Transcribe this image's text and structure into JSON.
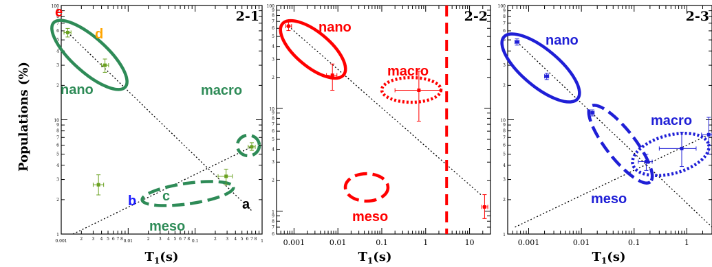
{
  "ylabel": "Populations (%)",
  "colors": {
    "green": "#2e8b57",
    "green_marker": "#6aa121",
    "red": "#ff0000",
    "blue": "#1f1fd6",
    "orange": "#ffa500",
    "dark": "#000000",
    "blue_letter": "#1a1aff"
  },
  "chart_data": [
    {
      "type": "scatter",
      "panel_label": "2-1",
      "xlabel": "T1(s)",
      "xscale": "log",
      "yscale": "log",
      "xlim": [
        0.001,
        1
      ],
      "ylim": [
        1,
        100
      ],
      "x_major_ticks": [
        "0.001",
        "0.01",
        "0.1",
        "1"
      ],
      "y_major_ticks": [
        "1",
        "10",
        "100"
      ],
      "color": "#2e8b57",
      "points": [
        {
          "x": 0.00125,
          "y": 58,
          "xerr": [
            0.0011,
            0.0014
          ],
          "yerr": [
            53,
            63
          ]
        },
        {
          "x": 0.0045,
          "y": 30,
          "xerr": [
            0.004,
            0.0051
          ],
          "yerr": [
            26,
            34
          ]
        },
        {
          "x": 0.0036,
          "y": 2.7,
          "xerr": [
            0.003,
            0.0043
          ],
          "yerr": [
            2.2,
            3.3
          ]
        },
        {
          "x": 0.29,
          "y": 3.2,
          "xerr": [
            0.22,
            0.36
          ],
          "yerr": [
            2.7,
            3.7
          ]
        },
        {
          "x": 0.7,
          "y": 5.8,
          "xerr": [
            0.62,
            0.79
          ],
          "yerr": [
            5.4,
            6.3
          ]
        }
      ],
      "dotted_lines": [
        {
          "x": [
            0.00125,
            0.7
          ],
          "y": [
            58,
            1.6
          ]
        },
        {
          "x": [
            0.0015,
            0.7
          ],
          "y": [
            1,
            5.8
          ]
        }
      ],
      "ellipses": [
        {
          "label": "nano",
          "cx": 0.003,
          "cy": 36,
          "style": "solid"
        },
        {
          "label": "meso",
          "cx": 0.012,
          "cy": 2.8,
          "style": "dashed"
        },
        {
          "label": "macro",
          "cx": 0.7,
          "cy": 5.8,
          "style": "dashed"
        }
      ],
      "annotations": [
        {
          "text": "e",
          "color": "#ff0000"
        },
        {
          "text": "d",
          "color": "#ffa500"
        },
        {
          "text": "nano",
          "color": "#2e8b57"
        },
        {
          "text": "macro",
          "color": "#2e8b57"
        },
        {
          "text": "c",
          "color": "#2e8b57"
        },
        {
          "text": "b",
          "color": "#1a1aff"
        },
        {
          "text": "a",
          "color": "#000000"
        },
        {
          "text": "meso",
          "color": "#2e8b57"
        }
      ]
    },
    {
      "type": "scatter",
      "panel_label": "2-2",
      "xlabel": "T1(s)",
      "xscale": "log",
      "yscale": "log",
      "xlim": [
        0.0004,
        30
      ],
      "ylim": [
        0.6,
        100
      ],
      "x_major_ticks": [
        "0.001",
        "0.01",
        "0.1",
        "1",
        "10"
      ],
      "y_major_ticks": [
        "1",
        "10",
        "100"
      ],
      "color": "#ff0000",
      "points": [
        {
          "x": 0.00075,
          "y": 63,
          "xerr": [
            0.00065,
            0.00088
          ],
          "yerr": [
            57,
            69
          ]
        },
        {
          "x": 0.0075,
          "y": 21,
          "xerr": [
            0.0055,
            0.0095
          ],
          "yerr": [
            15,
            27
          ]
        },
        {
          "x": 0.7,
          "y": 15,
          "xerr": [
            0.2,
            2.2
          ],
          "yerr": [
            7.5,
            23
          ]
        },
        {
          "x": 22,
          "y": 1.1,
          "xerr": [
            19,
            26
          ],
          "yerr": [
            0.85,
            1.45
          ]
        }
      ],
      "dotted_lines": [
        {
          "x": [
            0.00075,
            18
          ],
          "y": [
            63,
            1.45
          ]
        }
      ],
      "vertical_line": {
        "x": 3,
        "style": "dashed"
      },
      "ellipses": [
        {
          "label": "nano",
          "cx": 0.003,
          "cy": 33,
          "style": "solid"
        },
        {
          "label": "macro",
          "cx": 0.9,
          "cy": 16.5,
          "style": "dotted"
        },
        {
          "label": "meso",
          "cx": 0.3,
          "cy": 3,
          "style": "dashed"
        }
      ],
      "annotations": [
        {
          "text": "nano",
          "color": "#ff0000"
        },
        {
          "text": "macro",
          "color": "#ff0000"
        },
        {
          "text": "meso",
          "color": "#ff0000"
        }
      ]
    },
    {
      "type": "scatter",
      "panel_label": "2-3",
      "xlabel": "T1(s)",
      "xscale": "log",
      "yscale": "log",
      "xlim": [
        0.0004,
        3
      ],
      "ylim": [
        1,
        100
      ],
      "x_major_ticks": [
        "0.001",
        "0.01",
        "0.1",
        "1"
      ],
      "y_major_ticks": [
        "1",
        "10",
        "100"
      ],
      "color": "#1f1fd6",
      "points": [
        {
          "x": 0.0006,
          "y": 48,
          "xerr": [
            0.00055,
            0.00066
          ],
          "yerr": [
            45,
            51
          ]
        },
        {
          "x": 0.0022,
          "y": 24,
          "xerr": [
            0.002,
            0.0024
          ],
          "yerr": [
            22.5,
            25.5
          ]
        },
        {
          "x": 0.016,
          "y": 11.5,
          "xerr": [
            0.0145,
            0.0175
          ],
          "yerr": [
            10.8,
            12.2
          ]
        },
        {
          "x": 0.17,
          "y": 4.3,
          "xerr": [
            0.12,
            0.22
          ],
          "yerr": [
            3.6,
            5
          ]
        },
        {
          "x": 0.8,
          "y": 5.6,
          "xerr": [
            0.3,
            1.5
          ],
          "yerr": [
            3.9,
            7.8
          ]
        },
        {
          "x": 2.6,
          "y": 7.4,
          "xerr": [
            1.9,
            3
          ],
          "yerr": [
            5,
            10.5
          ]
        }
      ],
      "dotted_lines": [
        {
          "x": [
            0.0006,
            3
          ],
          "y": [
            48,
            1.15
          ]
        },
        {
          "x": [
            0.00055,
            2.6
          ],
          "y": [
            1.15,
            7.4
          ]
        }
      ],
      "ellipses": [
        {
          "label": "nano",
          "cx": 0.002,
          "cy": 25,
          "style": "solid"
        },
        {
          "label": "meso",
          "cx": 0.05,
          "cy": 7,
          "style": "dashed"
        },
        {
          "label": "macro",
          "cx": 1.4,
          "cy": 6,
          "style": "dotted"
        }
      ],
      "annotations": [
        {
          "text": "nano",
          "color": "#1f1fd6"
        },
        {
          "text": "macro",
          "color": "#1f1fd6"
        },
        {
          "text": "meso",
          "color": "#1f1fd6"
        }
      ]
    }
  ]
}
